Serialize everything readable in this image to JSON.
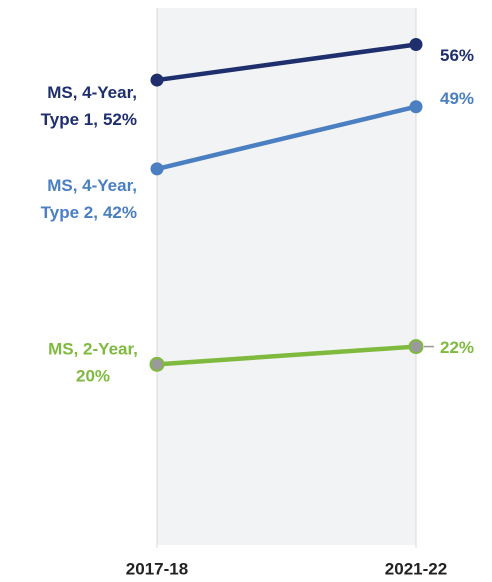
{
  "chart_data": {
    "type": "slope",
    "categories": [
      "2017-18",
      "2021-22"
    ],
    "ylim": [
      0,
      60
    ],
    "series": [
      {
        "name_lines": [
          "MS, 4-Year,",
          "Type 1,"
        ],
        "color": "#1f2f6e",
        "values": [
          52,
          56
        ],
        "value_labels": [
          "52%",
          "56%"
        ]
      },
      {
        "name_lines": [
          "MS, 4-Year,",
          "Type 2,"
        ],
        "color": "#4a7fc1",
        "values": [
          42,
          49
        ],
        "value_labels": [
          "42%",
          "49%"
        ]
      },
      {
        "name_lines": [
          "MS, 2-Year,"
        ],
        "color": "#7fba3f",
        "values": [
          20,
          22
        ],
        "value_labels": [
          "20%",
          "22%"
        ],
        "marker_fill": "#9a9a9a"
      }
    ]
  }
}
